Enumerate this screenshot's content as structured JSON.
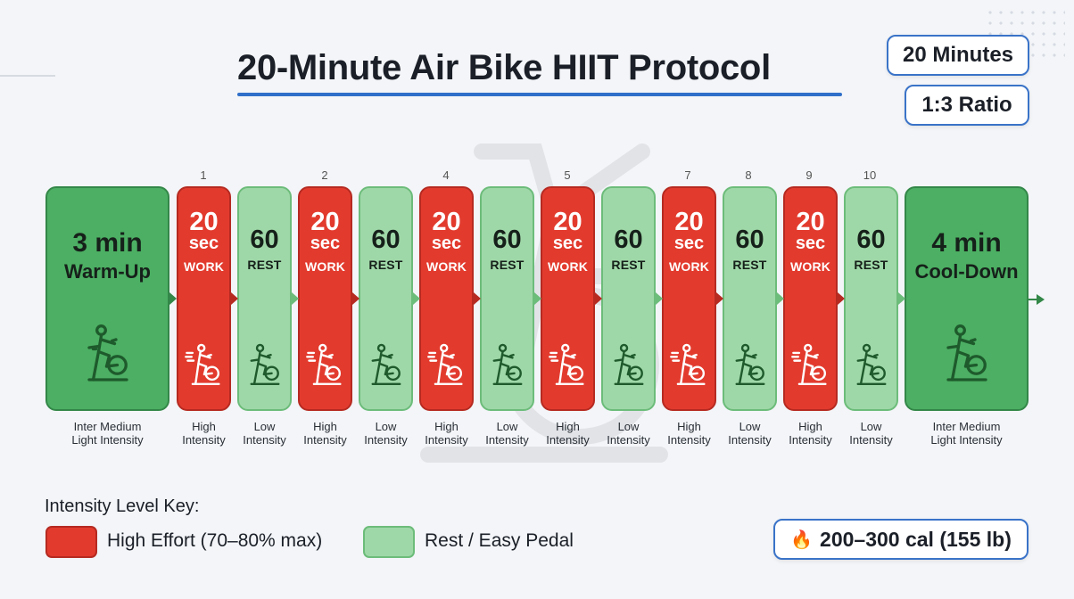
{
  "title": "20-Minute Air Bike HIIT Protocol",
  "badges": {
    "duration": "20 Minutes",
    "ratio": "1:3 Ratio",
    "calories": "200–300 cal (155 lb)"
  },
  "sequence_numbers": [
    "1",
    "2",
    "4",
    "5",
    "7",
    "8",
    "9",
    "10"
  ],
  "warmup": {
    "value": "3 min",
    "label": "Warm-Up",
    "intensity_line1": "Inter Medium",
    "intensity_line2": "Light Intensity"
  },
  "cooldown": {
    "value": "4 min",
    "label": "Cool-Down",
    "intensity_line1": "Inter Medium",
    "intensity_line2": "Light Intensity"
  },
  "work": {
    "value": "20",
    "unit": "sec",
    "label": "WORK",
    "intensity_line1": "High",
    "intensity_line2": "Intensity"
  },
  "rest": {
    "value": "60",
    "label": "REST",
    "intensity_line1": "Low",
    "intensity_line2": "Intensity"
  },
  "key": {
    "title": "Intensity Level Key:",
    "high": "High Effort (70–80% max)",
    "rest": "Rest / Easy Pedal"
  },
  "colors": {
    "work": "#e23b2e",
    "rest": "#9fd8a8",
    "long": "#4caf63",
    "accent": "#3a73c8"
  },
  "icons": {
    "bike": "stationary-bike-icon",
    "fire": "fire-icon"
  }
}
